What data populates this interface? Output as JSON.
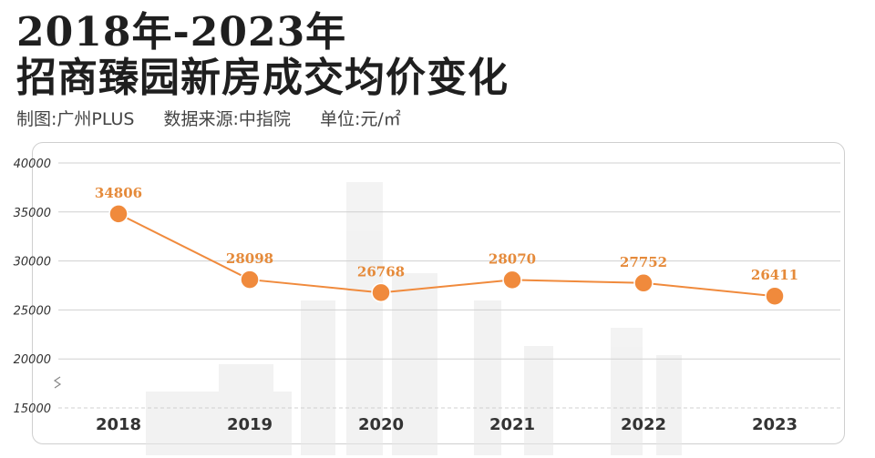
{
  "header": {
    "title_line1": "2018年-2023年",
    "title_line2": "招商臻园新房成交均价变化",
    "made_by": "制图:广州PLUS",
    "source": "数据来源:中指院",
    "unit": "单位:元/㎡"
  },
  "chart_data": {
    "type": "line",
    "categories": [
      "2018",
      "2019",
      "2020",
      "2021",
      "2022",
      "2023"
    ],
    "values": [
      34806,
      28098,
      26768,
      28070,
      27752,
      26411
    ],
    "value_labels": [
      "34806",
      "28098",
      "26768",
      "28070",
      "27752",
      "26411"
    ],
    "y_ticks": [
      "40000",
      "35000",
      "30000",
      "25000",
      "20000",
      "15000"
    ],
    "ylim": [
      15000,
      40000
    ],
    "grid": true,
    "legend": "none",
    "colors": {
      "line": "#f08a3c",
      "label": "#e58a3a",
      "axis_text": "#333333",
      "grid": "#d0d0d0"
    }
  }
}
